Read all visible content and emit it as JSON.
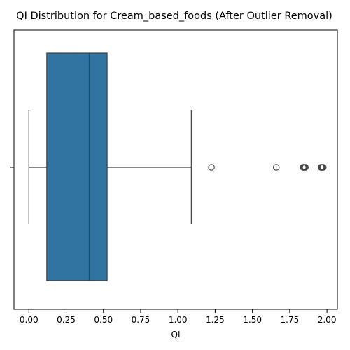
{
  "chart_data": {
    "type": "boxplot",
    "title": "QI Distribution for Cream_based_foods (After Outlier Removal)",
    "xlabel": "QI",
    "ylabel": "",
    "xlim": [
      -0.1,
      2.07
    ],
    "xticks": [
      0.0,
      0.25,
      0.5,
      0.75,
      1.0,
      1.25,
      1.5,
      1.75,
      2.0
    ],
    "xtick_labels": [
      "0.00",
      "0.25",
      "0.50",
      "0.75",
      "1.00",
      "1.25",
      "1.50",
      "1.75",
      "2.00"
    ],
    "orientation": "horizontal",
    "grid": false,
    "box": {
      "whisker_low": 0.0,
      "q1": 0.12,
      "median": 0.405,
      "q3": 0.525,
      "whisker_high": 1.09
    },
    "outliers": [
      1.225,
      1.66,
      1.84,
      1.845,
      1.85,
      1.855,
      1.96,
      1.965,
      1.97,
      1.975
    ],
    "colors": {
      "box_fill": "#3274a1",
      "line": "#3f3f3f",
      "axis": "#000000"
    }
  }
}
